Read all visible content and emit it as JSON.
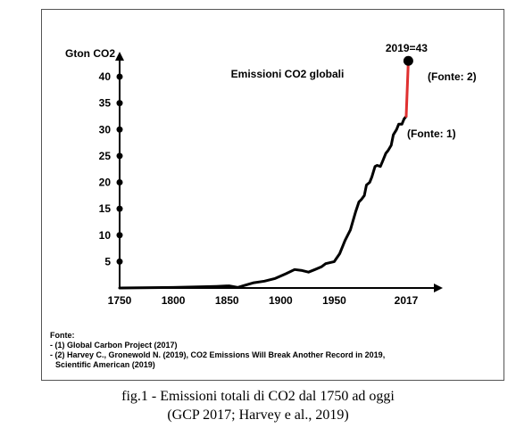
{
  "chart_data": {
    "type": "line",
    "title": "Emissioni CO2 globali",
    "ylabel": "Gton CO2",
    "xlabel": "",
    "xlim": [
      1750,
      2017
    ],
    "ylim": [
      0,
      43
    ],
    "x_ticks": [
      1750,
      1800,
      1850,
      1900,
      1950,
      2017
    ],
    "y_ticks": [
      5,
      10,
      15,
      20,
      25,
      30,
      35,
      40
    ],
    "grid": false,
    "series": [
      {
        "color": "#000000",
        "x": [
          1750,
          1800,
          1840,
          1852,
          1860,
          1865,
          1875,
          1885,
          1895,
          1905,
          1913,
          1920,
          1926,
          1932,
          1938,
          1942,
          1946,
          1950,
          1955,
          1960,
          1965,
          1970,
          1973,
          1975,
          1978,
          1980,
          1983,
          1985,
          1988,
          1990,
          1993,
          1995,
          1998,
          2000,
          2003,
          2005,
          2008,
          2010,
          2013,
          2015,
          2017
        ],
        "y": [
          0,
          0.1,
          0.3,
          0.4,
          0.1,
          0.4,
          1.0,
          1.3,
          1.8,
          2.7,
          3.5,
          3.3,
          3.0,
          3.5,
          4.0,
          4.6,
          4.8,
          5.0,
          6.5,
          9.0,
          11.0,
          14.5,
          16.3,
          16.7,
          17.5,
          19.5,
          20.0,
          21.0,
          23.0,
          23.2,
          23.0,
          24.0,
          25.5,
          26.0,
          27.0,
          29.0,
          30.0,
          31.0,
          31.0,
          32.0,
          32.5
        ]
      },
      {
        "color": "#e03030",
        "x": [
          2017,
          2019
        ],
        "y": [
          32.5,
          43
        ]
      }
    ],
    "point": {
      "x": 2019,
      "y": 43,
      "label": "2019=43",
      "color": "#000000"
    },
    "annotations": {
      "source2": "(Fonte: 2)",
      "source1": "(Fonte: 1)"
    }
  },
  "notes": {
    "heading": "Fonte:",
    "lines": [
      "- (1) Global Carbon Project (2017)",
      "- (2) Harvey C., Gronewold N. (2019), CO2 Emissions Will Break Another Record in 2019,",
      "  Scientific American (2019)"
    ]
  },
  "caption": {
    "line1": "fig.1 - Emissioni totali di CO2 dal 1750 ad oggi",
    "line2": "(GCP 2017; Harvey e al., 2019)"
  }
}
